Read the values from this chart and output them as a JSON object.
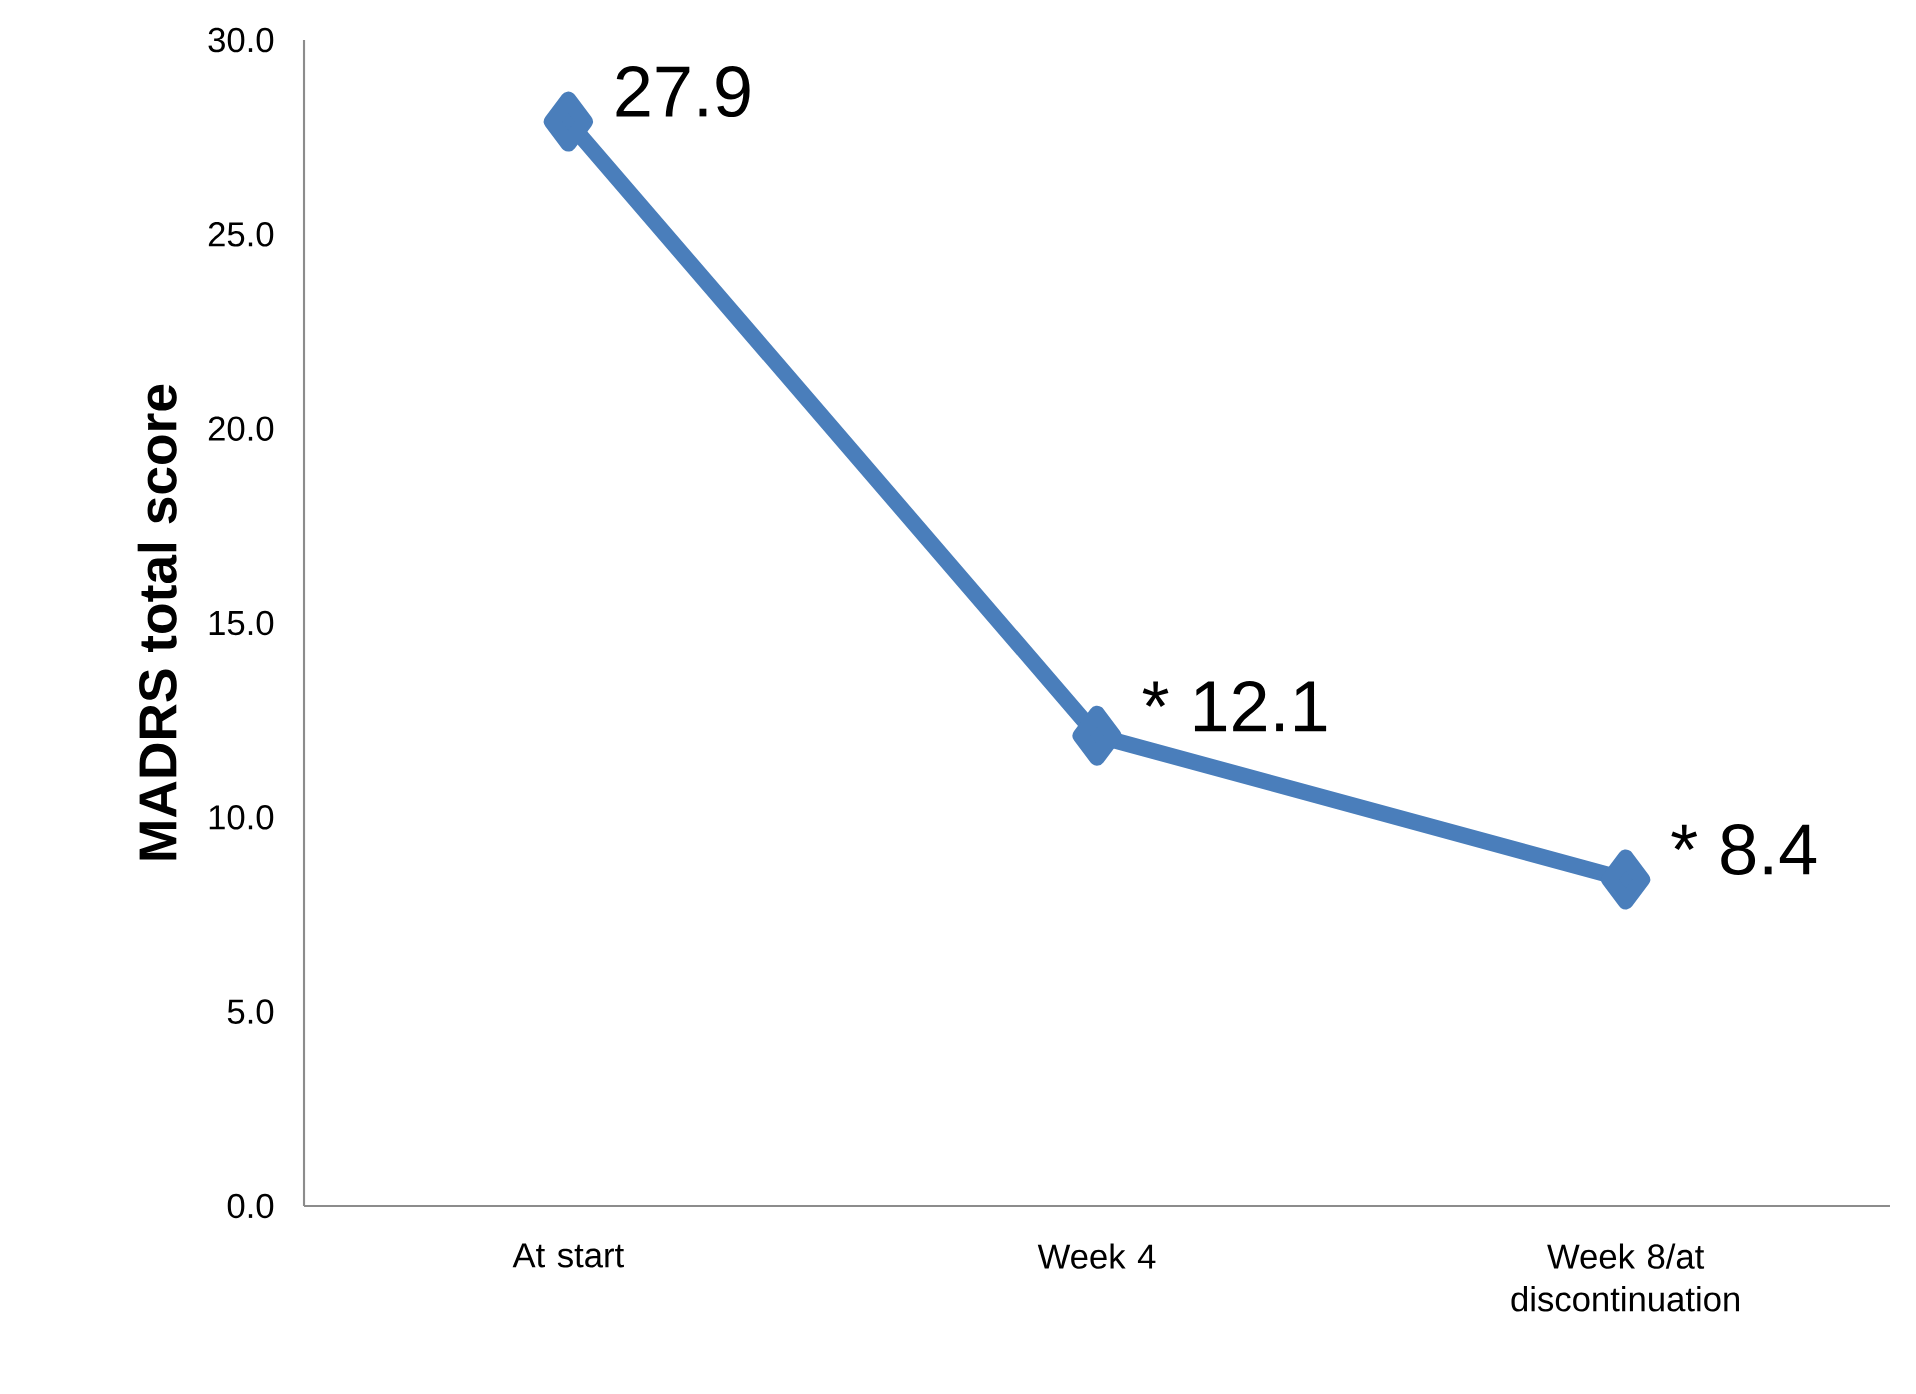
{
  "chart_data": {
    "type": "line",
    "ylabel": "MADRS total score",
    "categories": [
      "At start",
      "Week 4",
      "Week 8/at discontinuation"
    ],
    "values": [
      27.9,
      12.1,
      8.4
    ],
    "value_labels": [
      "27.9",
      "* 12.1",
      "* 8.4"
    ],
    "color": "#4a7ebb",
    "marker": "diamond",
    "line_style": "solid",
    "ylim": [
      0,
      30
    ],
    "yticks": [
      {
        "value": 0,
        "label": "0.0"
      },
      {
        "value": 5,
        "label": "5.0"
      },
      {
        "value": 10,
        "label": "10.0"
      },
      {
        "value": 15,
        "label": "15.0"
      },
      {
        "value": 20,
        "label": "20.0"
      },
      {
        "value": 25,
        "label": "25.0"
      },
      {
        "value": 30,
        "label": "30.0"
      }
    ]
  }
}
